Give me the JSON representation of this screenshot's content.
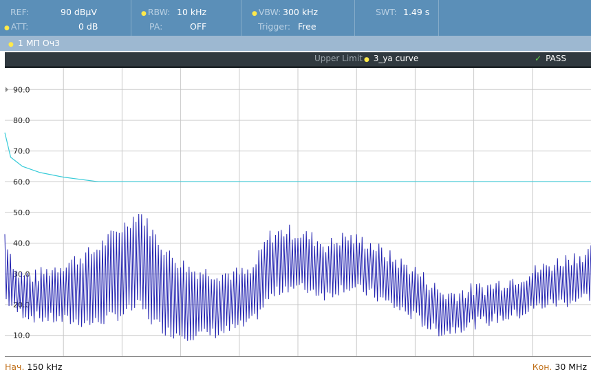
{
  "params": {
    "ref": {
      "label": "REF:",
      "value": "90 dBµV"
    },
    "att": {
      "label": "ATT:",
      "value": "0 dB"
    },
    "rbw": {
      "label": "RBW:",
      "value": "10 kHz"
    },
    "pa": {
      "label": "PA:",
      "value": "OFF"
    },
    "vbw": {
      "label": "VBW:",
      "value": "300 kHz"
    },
    "trigger": {
      "label": "Trigger:",
      "value": "Free"
    },
    "swt": {
      "label": "SWT:",
      "value": "1.49 s"
    }
  },
  "trace_label": "1 МП Оч3",
  "limit_bar": {
    "label": "Upper Limit",
    "curve": "3_ya curve",
    "status": "PASS"
  },
  "footer": {
    "start_label": "Нач.",
    "start_value": "150 kHz",
    "stop_label": "Кон.",
    "stop_value": "30 MHz"
  },
  "colors": {
    "header_bg": "#5b8fb8",
    "trace": "#2323b0",
    "limit_line": "#36cbd8",
    "pass": "#5fcf4a"
  },
  "chart_data": {
    "type": "line",
    "x_range_hz": [
      150000,
      30000000
    ],
    "ylim": [
      3,
      97
    ],
    "y_ticks": [
      10,
      20,
      30,
      40,
      50,
      60,
      70,
      80,
      90
    ],
    "y_tick_labels": [
      "10.0",
      "20.0",
      "30.0",
      "40.0",
      "50.0",
      "60.0",
      "70.0",
      "80.0",
      "90.0"
    ],
    "grid": true,
    "limit_curve": {
      "name": "3_ya curve",
      "x_frac": [
        0,
        0.01,
        0.03,
        0.06,
        0.1,
        0.16,
        1
      ],
      "y": [
        76,
        68,
        65,
        63,
        61.5,
        60,
        60
      ]
    },
    "trace_envelope": {
      "x_frac": [
        0,
        0.02,
        0.05,
        0.1,
        0.15,
        0.2,
        0.23,
        0.25,
        0.28,
        0.32,
        0.37,
        0.42,
        0.45,
        0.48,
        0.52,
        0.55,
        0.58,
        0.62,
        0.66,
        0.7,
        0.73,
        0.75,
        0.78,
        0.83,
        0.88,
        0.92,
        0.96,
        1
      ],
      "upper": [
        43,
        30,
        29,
        33,
        37,
        45,
        50,
        44,
        36,
        31,
        30,
        30,
        42,
        44,
        42,
        39,
        42,
        40,
        35,
        31,
        26,
        23,
        24,
        26,
        29,
        32,
        35,
        37
      ],
      "lower": [
        22,
        18,
        16,
        15,
        14,
        17,
        20,
        15,
        11,
        10,
        11,
        14,
        22,
        26,
        25,
        23,
        26,
        24,
        20,
        16,
        12,
        11,
        13,
        15,
        17,
        20,
        21,
        23
      ]
    }
  }
}
